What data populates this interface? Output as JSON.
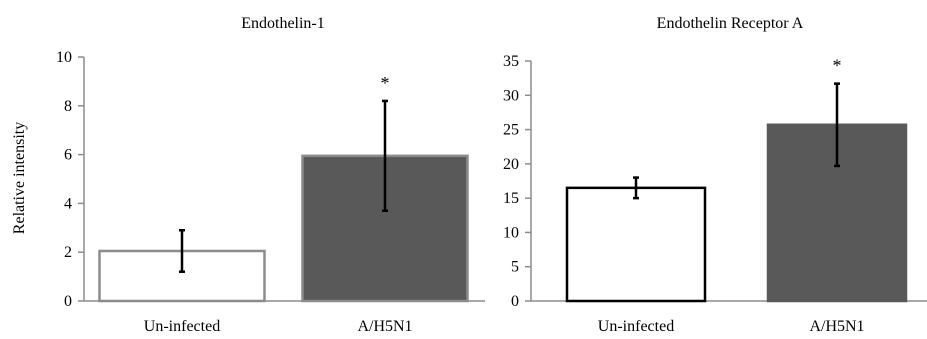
{
  "chart_data": [
    {
      "type": "bar",
      "title": "Endothelin-1",
      "ylabel": "Relative intensity",
      "xlabel": "",
      "categories": [
        "Un-infected",
        "A/H5N1"
      ],
      "values": [
        2.05,
        5.95
      ],
      "errors": [
        0.85,
        2.25
      ],
      "significance": [
        "",
        "*"
      ],
      "ylim": [
        0,
        10
      ],
      "yticks": [
        0,
        2,
        4,
        6,
        8,
        10
      ],
      "bar_fill": [
        "#ffffff",
        "#595959"
      ],
      "bar_stroke": [
        "#8c8c8c",
        "#8c8c8c"
      ],
      "grid": false
    },
    {
      "type": "bar",
      "title": "Endothelin Receptor A",
      "ylabel": "",
      "xlabel": "",
      "categories": [
        "Un-infected",
        "A/H5N1"
      ],
      "values": [
        16.5,
        25.7
      ],
      "errors": [
        1.5,
        6.0
      ],
      "significance": [
        "",
        "*"
      ],
      "ylim": [
        0,
        35
      ],
      "yticks": [
        0,
        5,
        10,
        15,
        20,
        25,
        30,
        35
      ],
      "bar_fill": [
        "#ffffff",
        "#595959"
      ],
      "bar_stroke": [
        "#000000",
        "#595959"
      ],
      "grid": false
    }
  ]
}
